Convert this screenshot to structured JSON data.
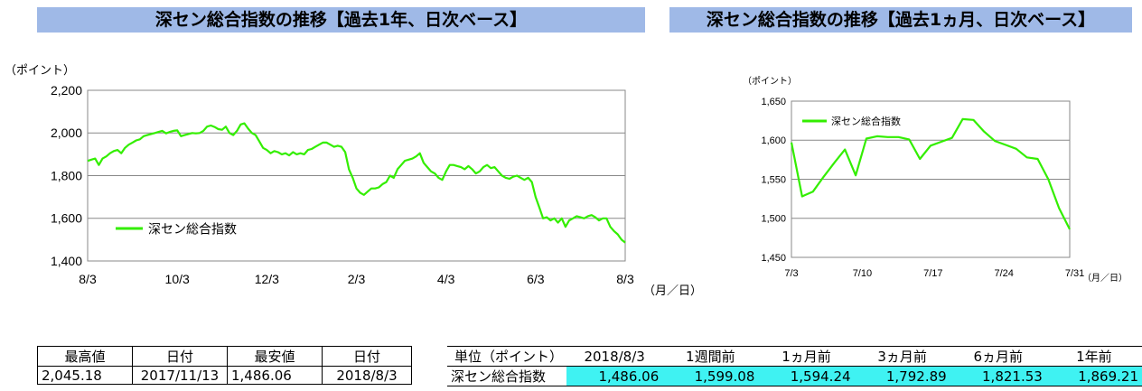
{
  "banners": {
    "left": "深セン総合指数の推移【過去1年、日次ベース】",
    "right": "深セン総合指数の推移【過去1ヵ月、日次ベース】"
  },
  "chart_data": [
    {
      "type": "line",
      "unit": "（ポイント）",
      "xunit": "（月／日）",
      "ylim": [
        1400,
        2200
      ],
      "yticks": [
        "1,400",
        "1,600",
        "1,800",
        "2,000",
        "2,200"
      ],
      "ytick_values": [
        1400,
        1600,
        1800,
        2000,
        2200
      ],
      "xticks": [
        "8/3",
        "10/3",
        "12/3",
        "2/3",
        "4/3",
        "6/3",
        "8/3"
      ],
      "grid": true,
      "legend_position": "bottom-left",
      "colors": {
        "line": "#33ee00"
      },
      "series": [
        {
          "name": "深セン総合指数",
          "values": [
            1869,
            1875,
            1880,
            1850,
            1880,
            1890,
            1905,
            1915,
            1920,
            1905,
            1930,
            1945,
            1955,
            1965,
            1970,
            1985,
            1990,
            1995,
            2000,
            2005,
            2010,
            1998,
            2005,
            2010,
            2012,
            1985,
            1990,
            1995,
            2000,
            1998,
            2000,
            2010,
            2030,
            2035,
            2028,
            2018,
            2015,
            2030,
            2000,
            1990,
            2010,
            2040,
            2045,
            2020,
            2000,
            1990,
            1960,
            1930,
            1920,
            1905,
            1915,
            1910,
            1900,
            1905,
            1895,
            1910,
            1900,
            1905,
            1900,
            1920,
            1925,
            1935,
            1945,
            1955,
            1955,
            1945,
            1935,
            1940,
            1935,
            1910,
            1830,
            1790,
            1740,
            1720,
            1710,
            1725,
            1740,
            1740,
            1745,
            1760,
            1770,
            1800,
            1790,
            1830,
            1850,
            1870,
            1875,
            1880,
            1890,
            1905,
            1860,
            1840,
            1820,
            1810,
            1790,
            1780,
            1820,
            1850,
            1850,
            1845,
            1840,
            1830,
            1845,
            1830,
            1810,
            1820,
            1840,
            1850,
            1835,
            1840,
            1820,
            1800,
            1790,
            1785,
            1795,
            1800,
            1790,
            1780,
            1790,
            1770,
            1700,
            1650,
            1600,
            1605,
            1590,
            1600,
            1580,
            1600,
            1560,
            1590,
            1600,
            1610,
            1605,
            1600,
            1610,
            1615,
            1605,
            1590,
            1600,
            1600,
            1560,
            1540,
            1525,
            1500,
            1486
          ]
        }
      ]
    },
    {
      "type": "line",
      "unit": "（ポイント）",
      "xunit": "（月／日）",
      "ylim": [
        1450,
        1650
      ],
      "yticks": [
        "1,450",
        "1,500",
        "1,550",
        "1,600",
        "1,650"
      ],
      "ytick_values": [
        1450,
        1500,
        1550,
        1600,
        1650
      ],
      "xticks": [
        "7/3",
        "7/10",
        "7/17",
        "7/24",
        "7/31"
      ],
      "grid": true,
      "legend_position": "top-left",
      "colors": {
        "line": "#33ee00"
      },
      "series": [
        {
          "name": "深セン総合指数",
          "values": [
            1597,
            1528,
            1534,
            1553,
            1571,
            1588,
            1555,
            1602,
            1605,
            1604,
            1604,
            1601,
            1576,
            1593,
            1598,
            1603,
            1627,
            1626,
            1611,
            1599,
            1594,
            1589,
            1578,
            1576,
            1550,
            1513,
            1486
          ]
        }
      ]
    }
  ],
  "summary": {
    "headers": [
      "最高値",
      "日付",
      "最安値",
      "日付"
    ],
    "values": [
      "2,045.18",
      "2017/11/13",
      "1,486.06",
      "2018/8/3"
    ]
  },
  "changes": {
    "headers": [
      "単位（ポイント）",
      "2018/8/3",
      "1週間前",
      "1ヵ月前",
      "3ヵ月前",
      "6ヵ月前",
      "1年前"
    ],
    "label": "深セン総合指数",
    "values": [
      "1,486.06",
      "1,599.08",
      "1,594.24",
      "1,792.89",
      "1,821.53",
      "1,869.21"
    ]
  }
}
